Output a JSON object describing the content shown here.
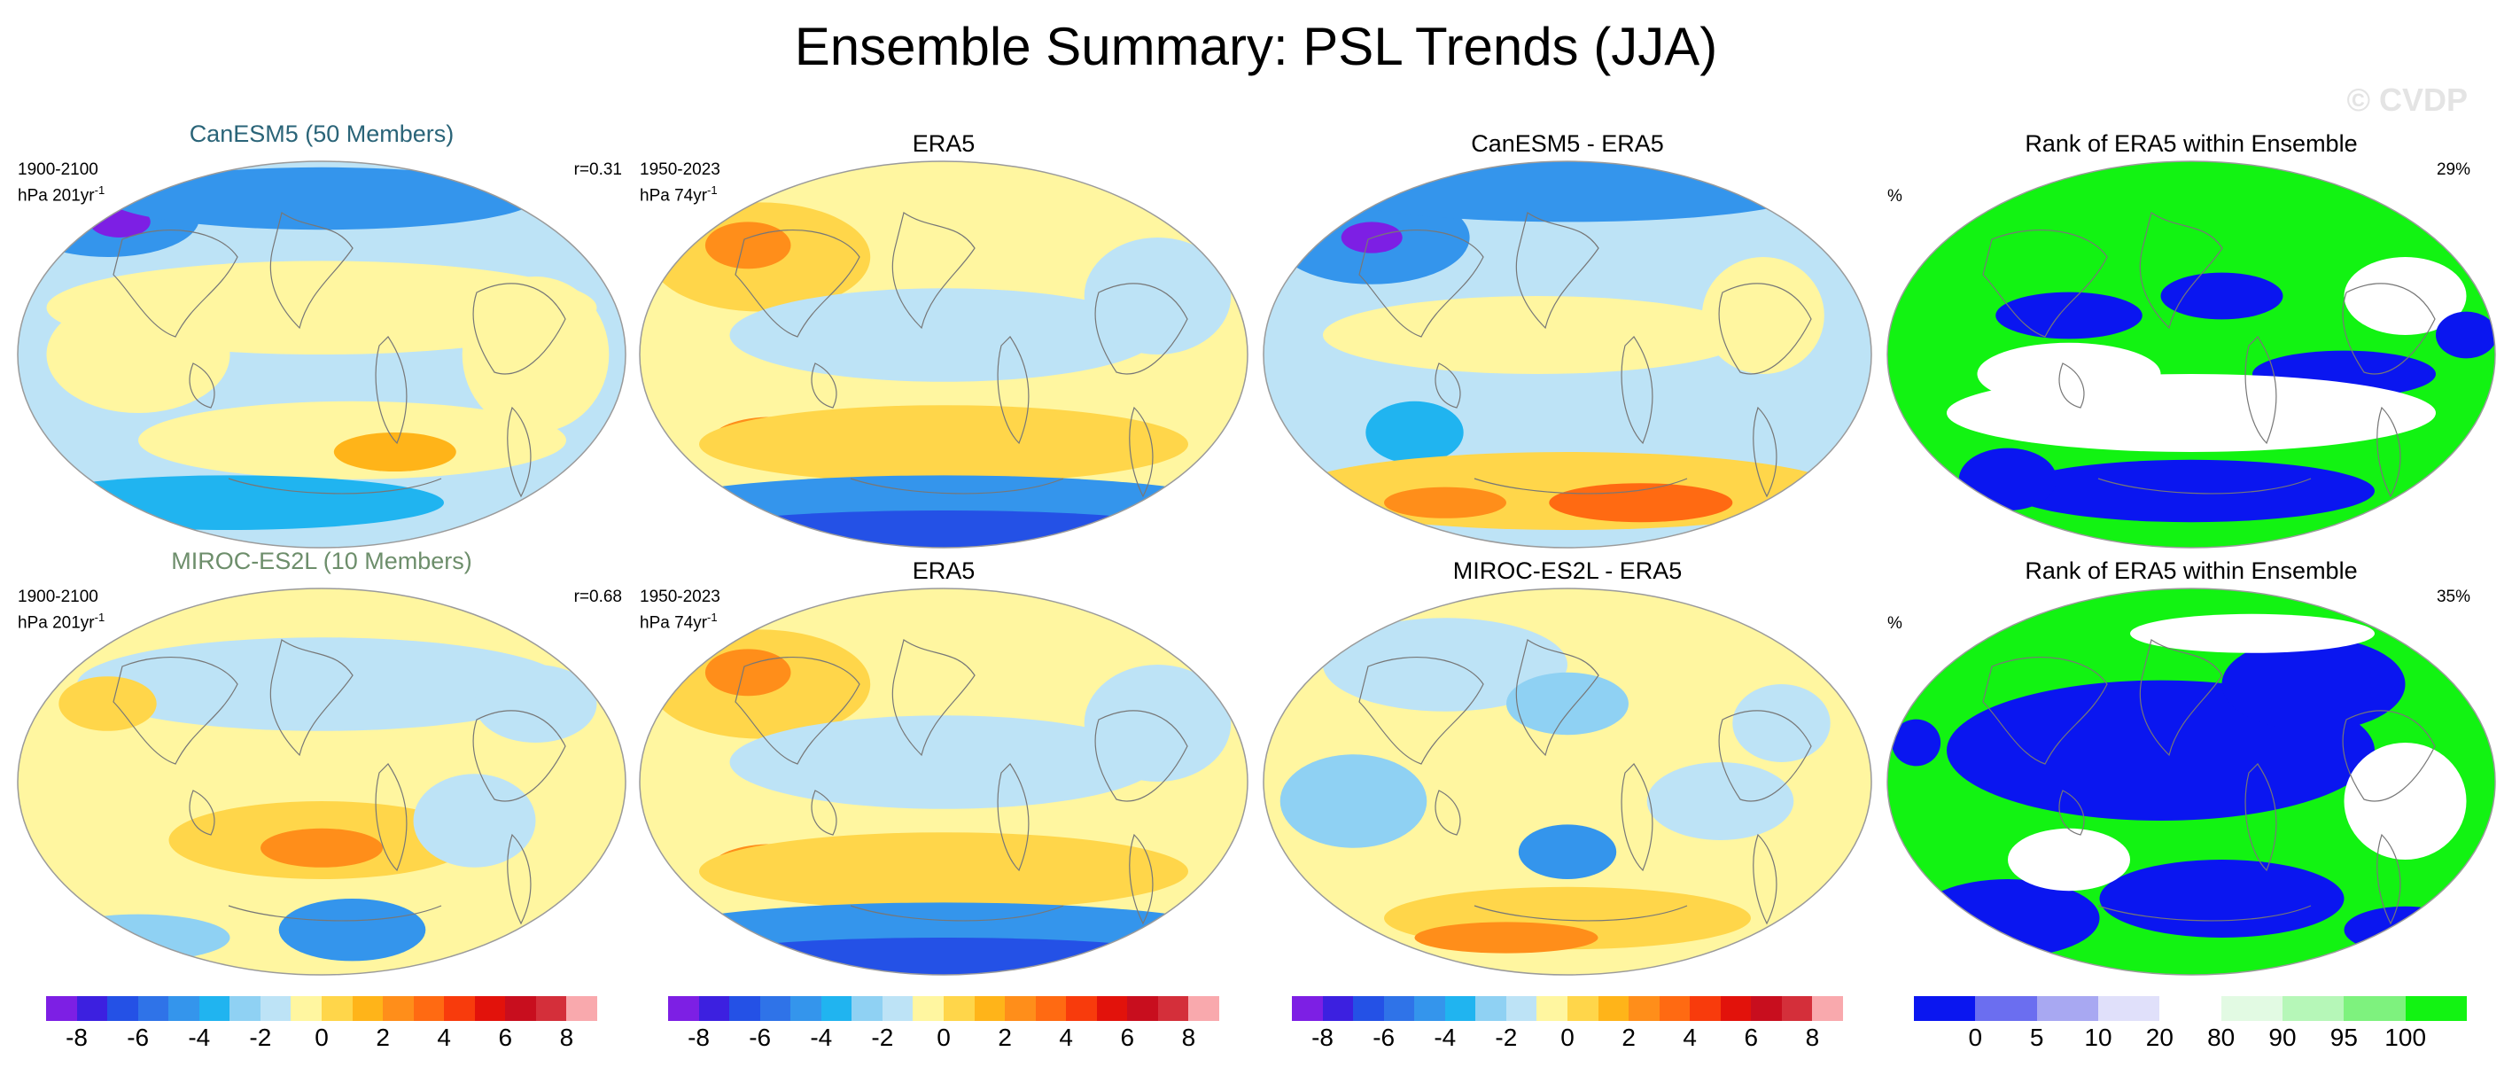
{
  "title": "Ensemble Summary: PSL Trends (JJA)",
  "watermark": "© CVDP",
  "rows": [
    {
      "panels": [
        {
          "kind": "model",
          "title": "CanESM5 (50 Members)",
          "period": "1900-2100",
          "units": "hPa 201yr",
          "units_sup": "-1",
          "corr": "r=0.31",
          "pattern": "model1"
        },
        {
          "kind": "obs",
          "title": "ERA5",
          "period": "1950-2023",
          "units": "hPa 74yr",
          "units_sup": "-1",
          "pattern": "obs"
        },
        {
          "kind": "diff",
          "title": "CanESM5 - ERA5",
          "pattern": "diff1"
        },
        {
          "kind": "rank",
          "title": "Rank of ERA5 within Ensemble",
          "units": "%",
          "pct": "29%",
          "pattern": "rank1"
        }
      ]
    },
    {
      "panels": [
        {
          "kind": "model",
          "title": "MIROC-ES2L (10 Members)",
          "period": "1900-2100",
          "units": "hPa 201yr",
          "units_sup": "-1",
          "corr": "r=0.68",
          "pattern": "model2"
        },
        {
          "kind": "obs",
          "title": "ERA5",
          "period": "1950-2023",
          "units": "hPa 74yr",
          "units_sup": "-1",
          "pattern": "obs"
        },
        {
          "kind": "diff",
          "title": "MIROC-ES2L - ERA5",
          "pattern": "diff2"
        },
        {
          "kind": "rank",
          "title": "Rank of ERA5 within Ensemble",
          "units": "%",
          "pct": "35%",
          "pattern": "rank2"
        }
      ]
    }
  ],
  "colorbars": {
    "trend": {
      "colors": [
        "#7d1fe4",
        "#3c20e0",
        "#2451e6",
        "#2f73e8",
        "#3495ec",
        "#20b4f0",
        "#8fd1f3",
        "#bde3f6",
        "#fff6a0",
        "#ffd64a",
        "#ffb419",
        "#ff8e1a",
        "#ff6a12",
        "#f83b0c",
        "#e2120b",
        "#c80e1e",
        "#d42f3a",
        "#f9a9ad"
      ],
      "ticks": [
        "-8",
        "-6",
        "-4",
        "-2",
        "0",
        "2",
        "4",
        "6",
        "8"
      ]
    },
    "rank": {
      "colors": [
        "#0a16f0",
        "#6b6ef0",
        "#a8a8f2",
        "#e0e0fa",
        "#ffffff",
        "#e2fae3",
        "#b6f7b8",
        "#7ef27e",
        "#12f312"
      ],
      "ticks": [
        "0",
        "5",
        "10",
        "20",
        "80",
        "90",
        "95",
        "100"
      ]
    }
  },
  "colors": {
    "land_outline": "#777777",
    "map_border": "#9a9a9a"
  }
}
